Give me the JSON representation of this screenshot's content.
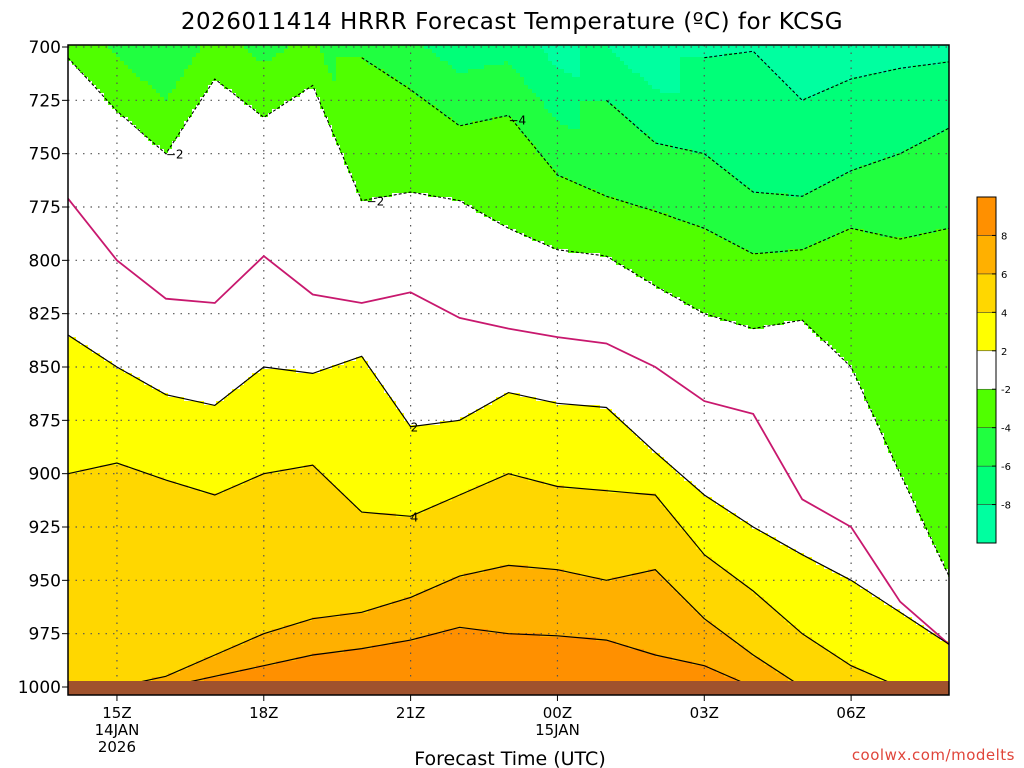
{
  "chart_data": {
    "type": "heatmap",
    "title": "2026011414 HRRR Forecast Temperature (ºC) for KCSG",
    "xlabel": "Forecast Time (UTC)",
    "ylabel": "",
    "credit": "coolwx.com/modelts",
    "grid": true,
    "y_reversed": true,
    "yticks": [
      700,
      725,
      750,
      775,
      800,
      825,
      850,
      875,
      900,
      925,
      950,
      975,
      1000
    ],
    "xticks": [
      {
        "hour": 1,
        "lines": [
          "15Z",
          "14JAN",
          "2026"
        ]
      },
      {
        "hour": 4,
        "lines": [
          "18Z"
        ]
      },
      {
        "hour": 7,
        "lines": [
          "21Z"
        ]
      },
      {
        "hour": 10,
        "lines": [
          "00Z",
          "15JAN"
        ]
      },
      {
        "hour": 13,
        "lines": [
          "03Z"
        ]
      },
      {
        "hour": 16,
        "lines": [
          "06Z"
        ]
      }
    ],
    "xlim": [
      0,
      18
    ],
    "ylim": [
      700,
      1000
    ],
    "colorbar": {
      "levels": [
        -10,
        -8,
        -6,
        -4,
        -2,
        2,
        4,
        6,
        8,
        10
      ],
      "colors": [
        "#00ffa0",
        "#00ff78",
        "#20ff40",
        "#50ff00",
        "#ffffff",
        "#ffff00",
        "#ffd700",
        "#ffb000",
        "#ff9000"
      ],
      "labels": [
        "-8",
        "-6",
        "-4",
        "-2",
        "2",
        "4",
        "6",
        "8"
      ]
    },
    "x_samples": [
      0,
      1,
      2,
      3,
      4,
      5,
      6,
      7,
      8,
      9,
      10,
      11,
      12,
      13,
      14,
      15,
      16,
      17,
      18
    ],
    "isotherms": [
      {
        "temp": -8,
        "p": [
          null,
          null,
          null,
          null,
          null,
          null,
          null,
          null,
          null,
          null,
          null,
          null,
          null,
          705,
          702,
          725,
          715,
          710,
          707
        ]
      },
      {
        "temp": -6,
        "p": [
          null,
          null,
          null,
          null,
          null,
          null,
          null,
          null,
          null,
          null,
          null,
          725,
          745,
          750,
          768,
          770,
          758,
          750,
          738
        ]
      },
      {
        "temp": -4,
        "p": [
          null,
          null,
          null,
          null,
          null,
          null,
          705,
          720,
          737,
          732,
          760,
          770,
          777,
          785,
          797,
          795,
          785,
          790,
          785
        ]
      },
      {
        "temp": -2,
        "p": [
          705,
          730,
          750,
          715,
          733,
          718,
          772,
          768,
          772,
          785,
          795,
          798,
          812,
          825,
          832,
          828,
          850,
          900,
          948
        ]
      },
      {
        "temp": 0,
        "p": [
          771,
          800,
          818,
          820,
          798,
          816,
          820,
          815,
          827,
          832,
          836,
          839,
          850,
          866,
          872,
          912,
          925,
          960,
          980
        ]
      },
      {
        "temp": 2,
        "p": [
          835,
          850,
          863,
          868,
          850,
          853,
          845,
          878,
          875,
          862,
          867,
          869,
          890,
          910,
          925,
          938,
          950,
          965,
          980
        ]
      },
      {
        "temp": 4,
        "p": [
          900,
          895,
          903,
          910,
          900,
          896,
          918,
          920,
          910,
          900,
          906,
          908,
          910,
          938,
          955,
          975,
          990,
          1000,
          null
        ]
      },
      {
        "temp": 6,
        "p": [
          1000,
          1000,
          995,
          985,
          975,
          968,
          965,
          958,
          948,
          943,
          945,
          950,
          945,
          968,
          985,
          1000,
          null,
          null,
          null
        ]
      },
      {
        "temp": 8,
        "p": [
          null,
          null,
          1000,
          995,
          990,
          985,
          982,
          978,
          972,
          975,
          976,
          978,
          985,
          990,
          1000,
          null,
          null,
          null,
          null
        ]
      }
    ],
    "contour_labels": [
      {
        "text": "−2",
        "hour": 2.0,
        "p": 750
      },
      {
        "text": "−2",
        "hour": 6.1,
        "p": 772
      },
      {
        "text": "−4",
        "hour": 9.0,
        "p": 734
      },
      {
        "text": "2",
        "hour": 7.0,
        "p": 878
      },
      {
        "text": "4",
        "hour": 7.0,
        "p": 920
      }
    ]
  }
}
